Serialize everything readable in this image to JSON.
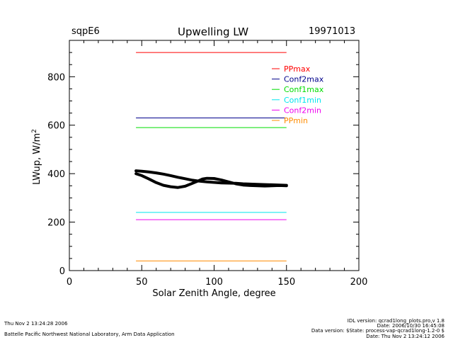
{
  "header": {
    "site": "sqpE6",
    "title": "Upwelling LW",
    "date": "19971013"
  },
  "footer": {
    "left_line1": "Thu Nov  2 13:24:28 2006",
    "left_line2": "Battelle Pacific Northwest National Laboratory, Arm Data Application",
    "right_line1": "IDL version: qcrad1long_plots.pro,v 1.8",
    "right_line2": "Date: 2006/10/30 16:45:08",
    "right_line3": "Data version: $State: process-vap-qcrad1long-1.2-0 $",
    "right_line4": "Date: Thu Nov  2 13:24:12 2006"
  },
  "chart_data": {
    "type": "line",
    "title": "Upwelling LW",
    "xlabel": "Solar Zenith Angle, degree",
    "ylabel": "LWup, W/m",
    "ylabel_superscript": "2",
    "xlim": [
      0,
      200
    ],
    "ylim": [
      0,
      950
    ],
    "x_ticks": [
      0,
      50,
      100,
      150,
      200
    ],
    "y_ticks": [
      0,
      200,
      400,
      600,
      800
    ],
    "grid": false,
    "legend_position": "top-right",
    "limits": [
      {
        "name": "PPmax",
        "value": 900,
        "x": [
          46,
          150
        ],
        "color": "#ff0000"
      },
      {
        "name": "Conf2max",
        "value": 630,
        "x": [
          46,
          150
        ],
        "color": "#00008b"
      },
      {
        "name": "Conf1max",
        "value": 590,
        "x": [
          46,
          150
        ],
        "color": "#00dd00"
      },
      {
        "name": "Conf1min",
        "value": 240,
        "x": [
          46,
          150
        ],
        "color": "#00e5ee"
      },
      {
        "name": "Conf2min",
        "value": 210,
        "x": [
          46,
          150
        ],
        "color": "#ee00ee"
      },
      {
        "name": "PPmin",
        "value": 40,
        "x": [
          46,
          150
        ],
        "color": "#ff8c00"
      }
    ],
    "series": [
      {
        "color": "#000000",
        "points": [
          [
            46,
            412
          ],
          [
            50,
            410
          ],
          [
            55,
            407
          ],
          [
            60,
            403
          ],
          [
            65,
            398
          ],
          [
            70,
            392
          ],
          [
            75,
            385
          ],
          [
            80,
            379
          ],
          [
            85,
            373
          ],
          [
            90,
            369
          ],
          [
            95,
            366
          ],
          [
            100,
            364
          ],
          [
            105,
            362
          ],
          [
            110,
            361
          ],
          [
            115,
            360
          ],
          [
            120,
            358
          ],
          [
            125,
            357
          ],
          [
            130,
            356
          ],
          [
            135,
            355
          ],
          [
            140,
            354
          ],
          [
            145,
            353
          ],
          [
            150,
            352
          ],
          [
            150,
            350
          ],
          [
            145,
            351
          ],
          [
            140,
            350
          ],
          [
            135,
            349
          ],
          [
            130,
            350
          ],
          [
            125,
            351
          ],
          [
            120,
            353
          ],
          [
            115,
            358
          ],
          [
            110,
            366
          ],
          [
            105,
            374
          ],
          [
            100,
            380
          ],
          [
            95,
            381
          ],
          [
            92,
            378
          ],
          [
            89,
            370
          ],
          [
            85,
            360
          ],
          [
            80,
            348
          ],
          [
            75,
            343
          ],
          [
            70,
            346
          ],
          [
            65,
            352
          ],
          [
            60,
            363
          ],
          [
            55,
            378
          ],
          [
            50,
            392
          ],
          [
            46,
            400
          ]
        ]
      }
    ]
  }
}
